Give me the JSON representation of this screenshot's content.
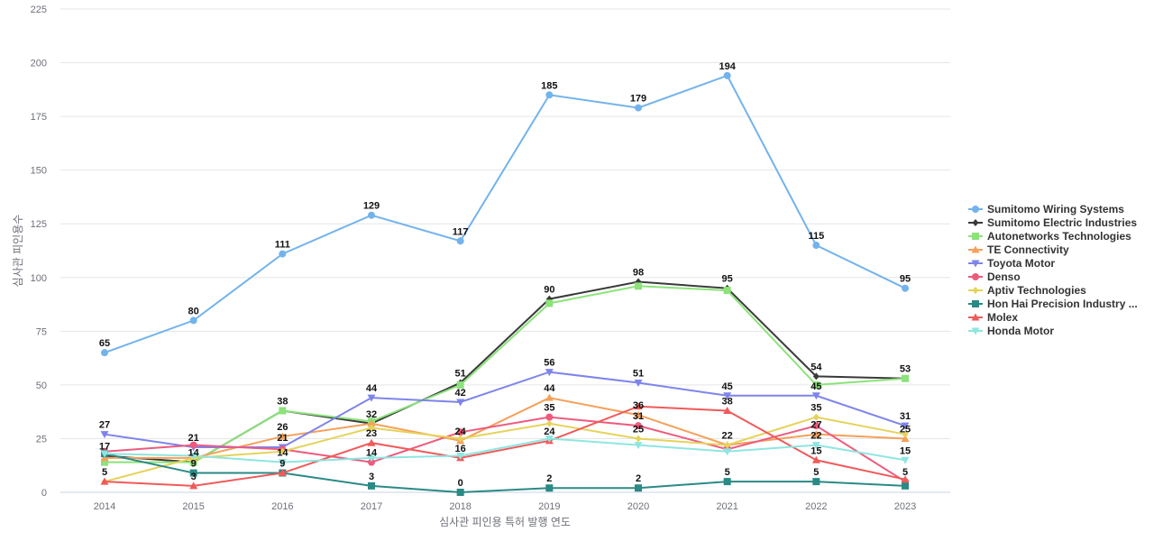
{
  "chart_data": {
    "type": "line",
    "title": "",
    "xlabel": "심사관 피인용 특허 발행 연도",
    "ylabel": "심사관 피인용수",
    "categories": [
      "2014",
      "2015",
      "2016",
      "2017",
      "2018",
      "2019",
      "2020",
      "2021",
      "2022",
      "2023"
    ],
    "ylim": [
      0,
      225
    ],
    "yticks": [
      0,
      25,
      50,
      75,
      100,
      125,
      150,
      175,
      200,
      225
    ],
    "grid": true,
    "legend_position": "right",
    "series": [
      {
        "name": "Sumitomo Wiring Systems",
        "color": "#73b3ec",
        "marker": "circle",
        "values": [
          65,
          80,
          111,
          129,
          117,
          185,
          179,
          194,
          115,
          95
        ]
      },
      {
        "name": "Sumitomo Electric Industries",
        "color": "#3a3a3a",
        "marker": "diamond",
        "values": [
          17,
          14,
          38,
          32,
          51,
          90,
          98,
          95,
          54,
          53
        ]
      },
      {
        "name": "Autonetworks Technologies",
        "color": "#8be37a",
        "marker": "square",
        "values": [
          14,
          14,
          38,
          33,
          50,
          88,
          96,
          94,
          50,
          53
        ]
      },
      {
        "name": "TE Connectivity",
        "color": "#f5a05a",
        "marker": "triangle",
        "values": [
          16,
          16,
          26,
          32,
          24,
          44,
          36,
          22,
          27,
          25
        ]
      },
      {
        "name": "Toyota Motor",
        "color": "#7e84ea",
        "marker": "triangle-down",
        "values": [
          27,
          21,
          21,
          44,
          42,
          56,
          51,
          45,
          45,
          31
        ]
      },
      {
        "name": "Denso",
        "color": "#ee5a7e",
        "marker": "circle",
        "values": [
          19,
          22,
          20,
          14,
          28,
          35,
          31,
          20,
          31,
          5
        ]
      },
      {
        "name": "Aptiv Technologies",
        "color": "#e5d35a",
        "marker": "diamond",
        "values": [
          5,
          16,
          19,
          30,
          25,
          32,
          25,
          22,
          35,
          27
        ]
      },
      {
        "name": "Hon Hai Precision Industry ...",
        "color": "#2a8a85",
        "marker": "square",
        "values": [
          18,
          9,
          9,
          3,
          0,
          2,
          2,
          5,
          5,
          3
        ]
      },
      {
        "name": "Molex",
        "color": "#f05a5a",
        "marker": "triangle",
        "values": [
          5,
          3,
          9,
          23,
          16,
          24,
          40,
          38,
          15,
          6
        ]
      },
      {
        "name": "Honda Motor",
        "color": "#8ee6e0",
        "marker": "triangle-down",
        "values": [
          18,
          17,
          14,
          16,
          17,
          25,
          22,
          19,
          22,
          15
        ]
      }
    ]
  }
}
